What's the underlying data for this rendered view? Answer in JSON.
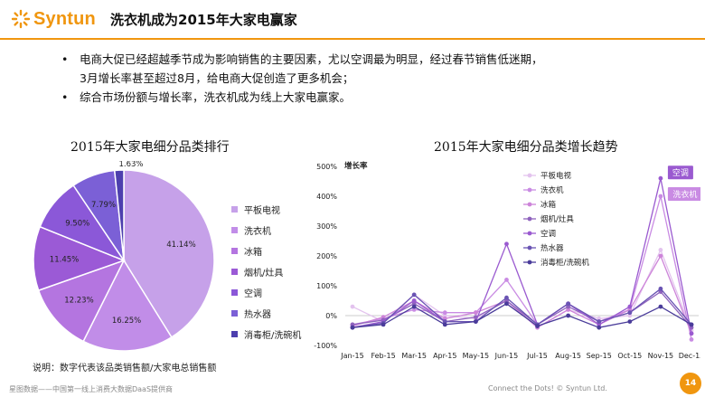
{
  "header": {
    "logo_text": "Syntun",
    "title": "洗衣机成为2015年大家电赢家",
    "accent": "#f0960f"
  },
  "bullets": {
    "b1_line1": "电商大促已经超越季节成为影响销售的主要因素，尤以空调最为明显，经过春节销售低迷期，",
    "b1_line2": "3月增长率甚至超过8月，给电商大促创造了更多机会；",
    "b2": "综合市场份额与增长率，洗衣机成为线上大家电赢家。"
  },
  "chart_data": [
    {
      "type": "pie",
      "title": "2015年大家电细分品类排行",
      "slices": [
        {
          "label": "平板电视",
          "value": 41.14,
          "value_label": "41.14%",
          "color": "#c6a1e9"
        },
        {
          "label": "洗衣机",
          "value": 16.25,
          "value_label": "16.25%",
          "color": "#c18de8"
        },
        {
          "label": "冰箱",
          "value": 12.23,
          "value_label": "12.23%",
          "color": "#b475e0"
        },
        {
          "label": "烟机/灶具",
          "value": 11.45,
          "value_label": "11.45%",
          "color": "#9b5ad6"
        },
        {
          "label": "空调",
          "value": 9.5,
          "value_label": "9.50%",
          "color": "#8b58d8"
        },
        {
          "label": "热水器",
          "value": 7.79,
          "value_label": "7.79%",
          "color": "#7b60d6"
        },
        {
          "label": "消毒柜/洗碗机",
          "value": 1.63,
          "value_label": "1.63%",
          "color": "#4d3fae"
        }
      ],
      "note": "说明：数字代表该品类销售额/大家电总销售额"
    },
    {
      "type": "line",
      "title": "2015年大家电细分品类增长趋势",
      "ylabel": "增长率",
      "ylim": [
        -100,
        500
      ],
      "yticks": [
        "500%",
        "400%",
        "300%",
        "200%",
        "100%",
        "0%",
        "-100%"
      ],
      "categories": [
        "Jan-15",
        "Feb-15",
        "Mar-15",
        "Apr-15",
        "May-15",
        "Jun-15",
        "Jul-15",
        "Aug-15",
        "Sep-15",
        "Oct-15",
        "Nov-15",
        "Dec-15"
      ],
      "series": [
        {
          "name": "平板电视",
          "color": "#e3c3ee",
          "values": [
            30,
            -20,
            70,
            0,
            -10,
            50,
            -40,
            20,
            -10,
            0,
            220,
            -50
          ]
        },
        {
          "name": "洗衣机",
          "color": "#c98be3",
          "values": [
            -30,
            -10,
            20,
            10,
            10,
            120,
            -30,
            40,
            -20,
            20,
            400,
            -80
          ]
        },
        {
          "name": "冰箱",
          "color": "#cd84d9",
          "values": [
            -35,
            -5,
            50,
            -10,
            10,
            50,
            -40,
            20,
            -30,
            20,
            200,
            -60
          ]
        },
        {
          "name": "烟机/灶具",
          "color": "#8e62bd",
          "values": [
            -30,
            -15,
            40,
            -20,
            -5,
            50,
            -30,
            30,
            -20,
            10,
            80,
            -40
          ]
        },
        {
          "name": "空调",
          "color": "#9a5ad0",
          "values": [
            -40,
            -20,
            50,
            -20,
            -20,
            240,
            -30,
            40,
            -30,
            30,
            460,
            -60
          ]
        },
        {
          "name": "热水器",
          "color": "#6a54b3",
          "values": [
            -40,
            -25,
            70,
            -20,
            -20,
            60,
            -30,
            40,
            -20,
            10,
            90,
            -30
          ]
        },
        {
          "name": "消毒柜/洗碗机",
          "color": "#4a3c9a",
          "values": [
            -40,
            -30,
            30,
            -30,
            -20,
            40,
            -35,
            0,
            -40,
            -20,
            30,
            -30
          ]
        }
      ],
      "callouts": [
        "空调",
        "洗衣机"
      ]
    }
  ],
  "footer": {
    "left": "星图数据——中国第一线上消费大数据DaaS提供商",
    "right": "Connect the Dots! © Syntun Ltd.",
    "page": "14"
  }
}
